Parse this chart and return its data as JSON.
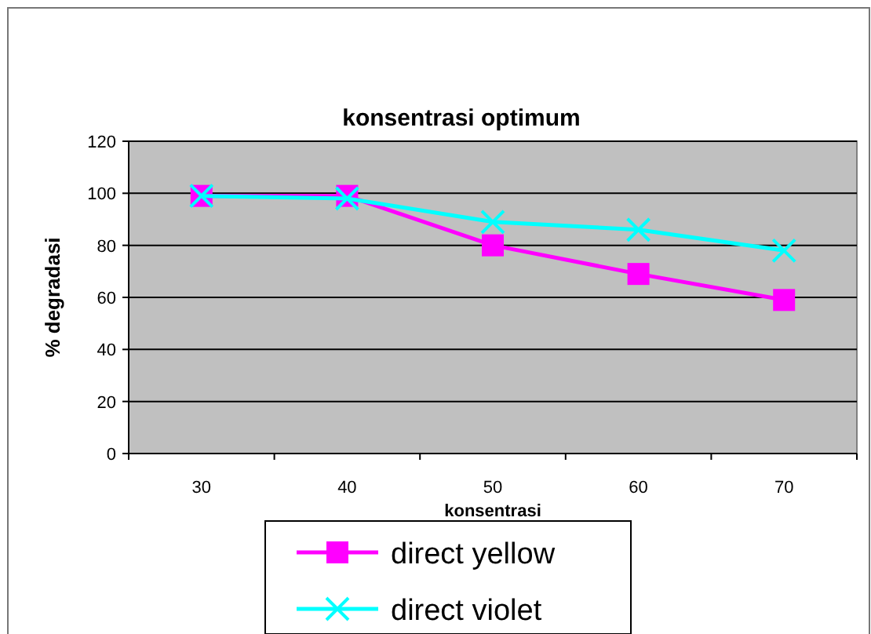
{
  "chart_data": {
    "type": "line",
    "title": "konsentrasi optimum",
    "xlabel": "konsentrasi",
    "ylabel": "% degradasi",
    "categories": [
      "30",
      "40",
      "50",
      "60",
      "70"
    ],
    "series": [
      {
        "name": "direct yellow",
        "color": "#ff00ff",
        "marker": "square",
        "values": [
          99,
          99,
          80,
          69,
          59
        ]
      },
      {
        "name": "direct violet",
        "color": "#00ffff",
        "marker": "cross",
        "values": [
          99,
          98,
          89,
          86,
          78
        ]
      }
    ],
    "ylim": [
      0,
      120
    ],
    "yticks": [
      0,
      20,
      40,
      60,
      80,
      100,
      120
    ],
    "grid": "y",
    "legend": "bottom"
  }
}
